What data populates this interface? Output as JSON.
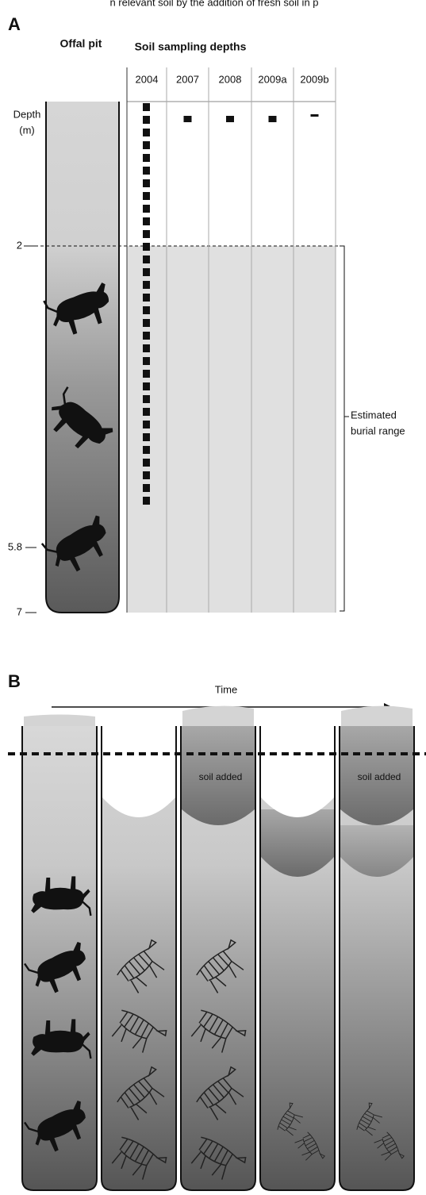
{
  "caption_fragment": "n relevant soil by the addition of fresh soil in p",
  "panel_a": {
    "label": "A",
    "pit_title": "Offal pit",
    "sampling_title": "Soil sampling depths",
    "columns": [
      "2004",
      "2007",
      "2008",
      "2009a",
      "2009b"
    ],
    "depth_title": "Depth",
    "depth_unit": "(m)",
    "depth_ticks": [
      "2",
      "5.8",
      "7"
    ],
    "bracket_label": [
      "Estimated",
      "burial range"
    ]
  },
  "panel_b": {
    "label": "B",
    "time_label": "Time",
    "soil_added": [
      "soil added",
      "soil added"
    ]
  }
}
